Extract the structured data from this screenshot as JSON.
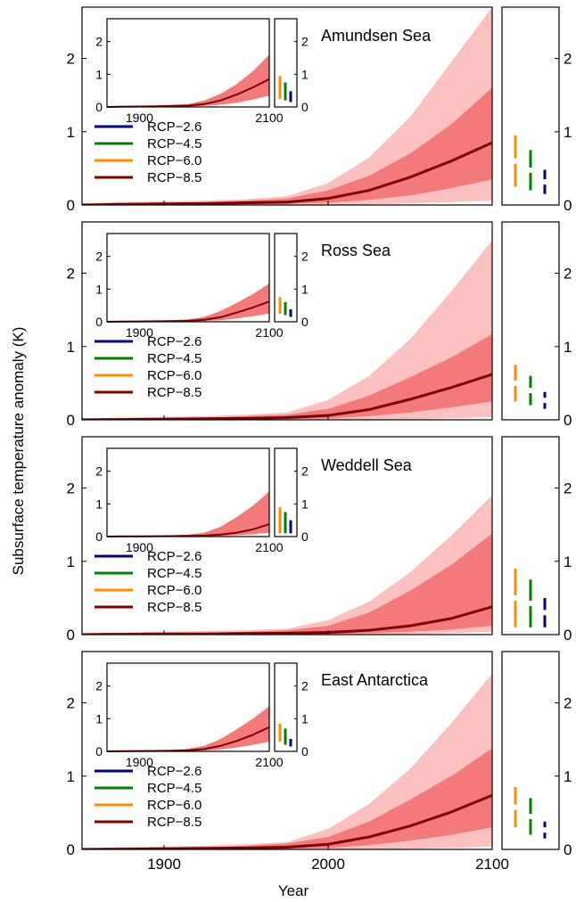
{
  "chart_data": {
    "type": "line",
    "ylabel": "Subsurface temperature anomaly (K)",
    "xlabel": "Year",
    "xlim": [
      1850,
      2100
    ],
    "ylim": [
      0,
      2.7
    ],
    "xticks": [
      "1900",
      "2000",
      "2100"
    ],
    "yticks": [
      "0",
      "1",
      "2"
    ],
    "inset": {
      "xticks": [
        "1900",
        "2100"
      ],
      "yticks": [
        "0",
        "1",
        "2"
      ],
      "ylim": [
        0,
        2.7
      ]
    },
    "legend": [
      "RCP−2.6",
      "RCP−4.5",
      "RCP−6.0",
      "RCP−8.5"
    ],
    "colors": {
      "rcp26": "#000080",
      "rcp45": "#008000",
      "rcp60": "#ff8c00",
      "rcp85": "#800000",
      "band_outer": "#fbc0c0",
      "band_inner": "#f47a7a"
    },
    "panels": [
      {
        "name": "Amundsen Sea",
        "x": [
          1850,
          1875,
          1900,
          1925,
          1950,
          1975,
          2000,
          2025,
          2050,
          2075,
          2100
        ],
        "median": [
          0,
          0.01,
          0.015,
          0.02,
          0.03,
          0.04,
          0.09,
          0.2,
          0.38,
          0.6,
          0.85
        ],
        "inner_low": [
          0,
          0,
          0,
          0.005,
          0.01,
          0.015,
          0.03,
          0.07,
          0.13,
          0.23,
          0.35
        ],
        "inner_high": [
          0.01,
          0.02,
          0.03,
          0.04,
          0.06,
          0.09,
          0.2,
          0.4,
          0.7,
          1.1,
          1.6
        ],
        "outer_low": [
          0,
          0,
          0,
          0,
          0,
          0,
          0,
          0.01,
          0.02,
          0.04,
          0.06
        ],
        "outer_high": [
          0.02,
          0.04,
          0.05,
          0.06,
          0.08,
          0.12,
          0.3,
          0.65,
          1.2,
          1.95,
          2.8
        ],
        "inset_median": [
          0,
          0.01,
          0.015,
          0.02,
          0.03,
          0.04,
          0.09,
          0.2,
          0.38,
          0.6,
          0.85
        ],
        "ranges": {
          "rcp60": [
            0.25,
            0.95
          ],
          "rcp45": [
            0.2,
            0.75
          ],
          "rcp26": [
            0.15,
            0.48
          ]
        }
      },
      {
        "name": "Ross Sea",
        "x": [
          1850,
          1875,
          1900,
          1925,
          1950,
          1975,
          2000,
          2025,
          2050,
          2075,
          2100
        ],
        "median": [
          0,
          0.005,
          0.01,
          0.015,
          0.02,
          0.03,
          0.06,
          0.14,
          0.28,
          0.44,
          0.62
        ],
        "inner_low": [
          0,
          0,
          0,
          0,
          0.005,
          0.01,
          0.02,
          0.05,
          0.1,
          0.17,
          0.25
        ],
        "inner_high": [
          0.01,
          0.02,
          0.025,
          0.03,
          0.05,
          0.07,
          0.15,
          0.33,
          0.58,
          0.85,
          1.17
        ],
        "outer_low": [
          0,
          0,
          0,
          0,
          0,
          0,
          0,
          0.005,
          0.01,
          0.02,
          0.04
        ],
        "outer_high": [
          0.02,
          0.03,
          0.04,
          0.05,
          0.07,
          0.1,
          0.27,
          0.6,
          1.1,
          1.75,
          2.45
        ],
        "ranges": {
          "rcp60": [
            0.25,
            0.75
          ],
          "rcp45": [
            0.2,
            0.6
          ],
          "rcp26": [
            0.15,
            0.38
          ]
        }
      },
      {
        "name": "Weddell Sea",
        "x": [
          1850,
          1875,
          1900,
          1925,
          1950,
          1975,
          2000,
          2025,
          2050,
          2075,
          2100
        ],
        "median": [
          0,
          0.005,
          0.008,
          0.01,
          0.015,
          0.02,
          0.03,
          0.06,
          0.12,
          0.22,
          0.38
        ],
        "inner_low": [
          0,
          0,
          0,
          0,
          0.003,
          0.005,
          0.01,
          0.02,
          0.04,
          0.07,
          0.12
        ],
        "inner_high": [
          0.01,
          0.015,
          0.02,
          0.025,
          0.04,
          0.06,
          0.12,
          0.3,
          0.6,
          0.95,
          1.38
        ],
        "outer_low": [
          0,
          0,
          0,
          0,
          0,
          0,
          0,
          0.005,
          0.01,
          0.02,
          0.04
        ],
        "outer_high": [
          0.02,
          0.03,
          0.04,
          0.05,
          0.06,
          0.08,
          0.2,
          0.45,
          0.85,
          1.35,
          1.9
        ],
        "ranges": {
          "rcp60": [
            0.1,
            0.9
          ],
          "rcp45": [
            0.1,
            0.75
          ],
          "rcp26": [
            0.1,
            0.5
          ]
        }
      },
      {
        "name": "East Antarctica",
        "x": [
          1850,
          1875,
          1900,
          1925,
          1950,
          1975,
          2000,
          2025,
          2050,
          2075,
          2100
        ],
        "median": [
          0,
          0.005,
          0.01,
          0.015,
          0.02,
          0.03,
          0.07,
          0.17,
          0.32,
          0.51,
          0.74
        ],
        "inner_low": [
          0,
          0,
          0,
          0,
          0.005,
          0.01,
          0.02,
          0.06,
          0.12,
          0.2,
          0.3
        ],
        "inner_high": [
          0.01,
          0.02,
          0.025,
          0.03,
          0.05,
          0.08,
          0.17,
          0.38,
          0.68,
          1.0,
          1.38
        ],
        "outer_low": [
          0,
          0,
          0,
          0,
          0,
          0,
          0,
          0.005,
          0.01,
          0.02,
          0.04
        ],
        "outer_high": [
          0.02,
          0.03,
          0.04,
          0.05,
          0.07,
          0.1,
          0.28,
          0.62,
          1.1,
          1.72,
          2.4
        ],
        "ranges": {
          "rcp60": [
            0.3,
            0.85
          ],
          "rcp45": [
            0.2,
            0.7
          ],
          "rcp26": [
            0.15,
            0.38
          ]
        }
      }
    ]
  }
}
